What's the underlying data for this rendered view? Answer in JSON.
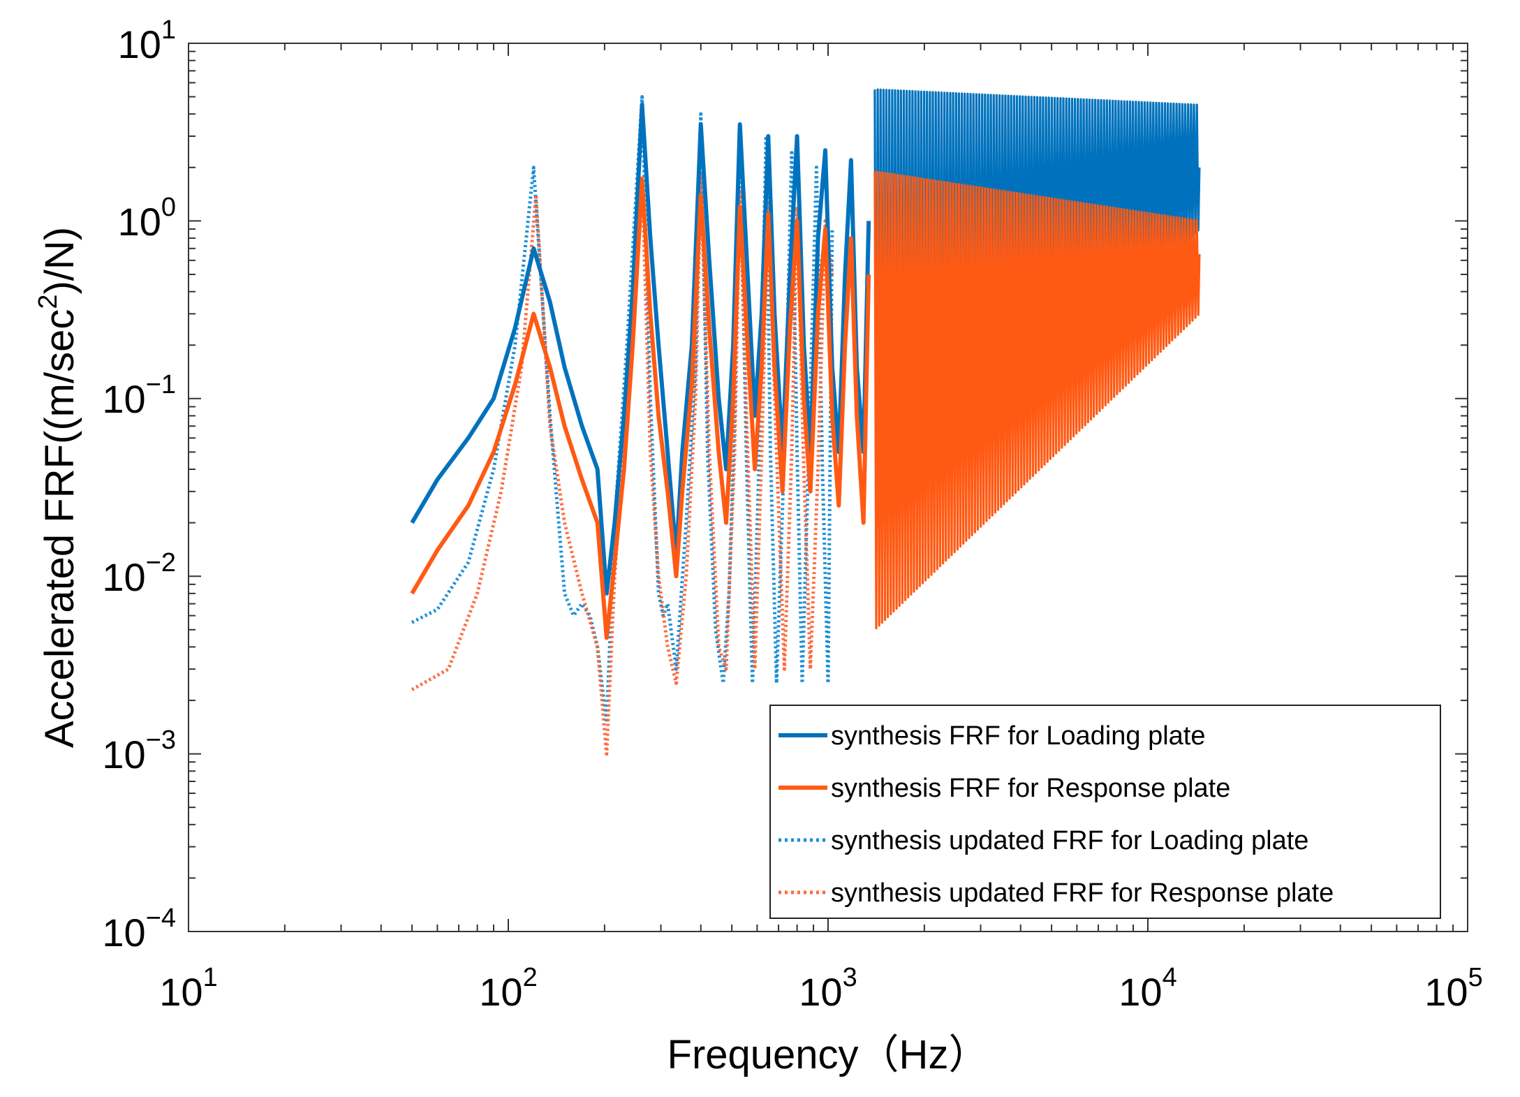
{
  "chart_data": {
    "type": "line",
    "title": "",
    "xlabel": "Frequency（Hz）",
    "ylabel_parts": {
      "prefix": "Accelerated FRF((m/sec",
      "sup": "2",
      "suffix": ")/N)"
    },
    "xscale": "log",
    "yscale": "log",
    "xlim": [
      10,
      100000
    ],
    "ylim": [
      0.0001,
      10
    ],
    "x_ticks": [
      {
        "value": 10,
        "base": "10",
        "exp": "1"
      },
      {
        "value": 100,
        "base": "10",
        "exp": "2"
      },
      {
        "value": 1000,
        "base": "10",
        "exp": "3"
      },
      {
        "value": 10000,
        "base": "10",
        "exp": "4"
      },
      {
        "value": 100000,
        "base": "10",
        "exp": "5"
      }
    ],
    "y_ticks": [
      {
        "value": 10,
        "base": "10",
        "exp": "1"
      },
      {
        "value": 1,
        "base": "10",
        "exp": "0"
      },
      {
        "value": 0.1,
        "base": "10",
        "exp": "−1"
      },
      {
        "value": 0.01,
        "base": "10",
        "exp": "−2"
      },
      {
        "value": 0.001,
        "base": "10",
        "exp": "−3"
      },
      {
        "value": 0.0001,
        "base": "10",
        "exp": "−4"
      }
    ],
    "grid": false,
    "legend_position": "bottom-right",
    "series": [
      {
        "name": "synthesis FRF for Loading plate",
        "color": "#0072bd",
        "style": "solid",
        "x": [
          50,
          60,
          75,
          90,
          105,
          120,
          135,
          150,
          170,
          190,
          203,
          215,
          230,
          245,
          262,
          278,
          295,
          315,
          335,
          350,
          375,
          400,
          425,
          455,
          480,
          505,
          530,
          560,
          590,
          620,
          650,
          680,
          720,
          760,
          800,
          840,
          880,
          930,
          980,
          1030,
          1080,
          1130,
          1180,
          1230,
          1290,
          1340
        ],
        "y": [
          0.02,
          0.035,
          0.06,
          0.1,
          0.25,
          0.7,
          0.35,
          0.15,
          0.07,
          0.04,
          0.008,
          0.02,
          0.08,
          0.4,
          4.5,
          0.8,
          0.2,
          0.05,
          0.013,
          0.05,
          0.2,
          3.5,
          0.6,
          0.1,
          0.04,
          0.2,
          3.5,
          0.5,
          0.08,
          0.3,
          3.0,
          0.3,
          0.05,
          0.5,
          3.0,
          0.2,
          0.05,
          0.8,
          2.5,
          0.15,
          0.05,
          0.5,
          2.2,
          0.15,
          0.05,
          1.0
        ]
      },
      {
        "name": "synthesis FRF for Response plate",
        "color": "#ff5a14",
        "style": "solid",
        "x": [
          50,
          60,
          75,
          90,
          105,
          120,
          135,
          150,
          170,
          190,
          203,
          215,
          230,
          245,
          262,
          278,
          295,
          315,
          335,
          350,
          375,
          400,
          425,
          455,
          480,
          505,
          530,
          560,
          590,
          620,
          650,
          680,
          720,
          760,
          800,
          840,
          880,
          930,
          980,
          1030,
          1080,
          1130,
          1180,
          1230,
          1290,
          1340
        ],
        "y": [
          0.008,
          0.014,
          0.025,
          0.05,
          0.12,
          0.3,
          0.15,
          0.07,
          0.035,
          0.02,
          0.0045,
          0.012,
          0.04,
          0.2,
          1.7,
          0.3,
          0.08,
          0.03,
          0.01,
          0.03,
          0.12,
          1.4,
          0.25,
          0.05,
          0.02,
          0.1,
          1.2,
          0.2,
          0.04,
          0.15,
          1.1,
          0.15,
          0.03,
          0.25,
          1.0,
          0.1,
          0.03,
          0.3,
          0.9,
          0.08,
          0.025,
          0.2,
          0.8,
          0.08,
          0.02,
          0.5
        ]
      },
      {
        "name": "synthesis updated FRF for Loading plate",
        "color": "#1a8fd6",
        "style": "dotted",
        "x": [
          50,
          60,
          75,
          90,
          105,
          120,
          135,
          150,
          160,
          170,
          180,
          190,
          203,
          215,
          235,
          262,
          278,
          295,
          305,
          315,
          335,
          360,
          385,
          400,
          420,
          445,
          470,
          490,
          510,
          530,
          555,
          580,
          610,
          640,
          660,
          690,
          730,
          770,
          800,
          830,
          870,
          920,
          960,
          1000,
          1030
        ],
        "y": [
          0.0055,
          0.0065,
          0.012,
          0.04,
          0.2,
          2.0,
          0.08,
          0.008,
          0.006,
          0.007,
          0.006,
          0.004,
          0.0015,
          0.02,
          0.2,
          5.0,
          0.1,
          0.008,
          0.006,
          0.007,
          0.003,
          0.02,
          0.15,
          4.0,
          0.05,
          0.005,
          0.0025,
          0.008,
          0.08,
          3.2,
          0.05,
          0.0025,
          0.05,
          3.0,
          0.05,
          0.0025,
          0.05,
          2.5,
          0.05,
          0.0025,
          0.05,
          2.0,
          0.04,
          0.0025,
          0.9
        ]
      },
      {
        "name": "synthesis updated FRF for Response plate",
        "color": "#ff6a3d",
        "style": "dotted",
        "x": [
          50,
          65,
          80,
          95,
          110,
          122,
          135,
          150,
          170,
          190,
          203,
          215,
          235,
          262,
          278,
          295,
          315,
          335,
          360,
          385,
          400,
          425,
          455,
          480,
          510,
          530,
          560,
          590,
          620,
          650,
          690,
          730,
          770,
          800,
          840,
          880,
          930,
          980,
          1030
        ],
        "y": [
          0.0023,
          0.003,
          0.008,
          0.03,
          0.15,
          1.4,
          0.07,
          0.02,
          0.008,
          0.004,
          0.001,
          0.01,
          0.1,
          1.8,
          0.05,
          0.01,
          0.004,
          0.0025,
          0.01,
          0.1,
          1.8,
          0.05,
          0.004,
          0.003,
          0.05,
          1.5,
          0.05,
          0.003,
          0.05,
          1.3,
          0.05,
          0.003,
          0.05,
          1.2,
          0.04,
          0.003,
          0.04,
          1.0,
          0.5
        ]
      }
    ],
    "dense_region": {
      "x_start": 1400,
      "x_end": 14500,
      "loading": {
        "upper_start": 5.5,
        "upper_end": 4.5,
        "lower_start": 0.012,
        "lower_end": 0.9,
        "final_x": 14500,
        "final_y": 2.0
      },
      "response": {
        "upper_start": 1.9,
        "upper_end": 1.0,
        "lower_start": 0.005,
        "lower_end": 0.3,
        "final_x": 14500,
        "final_y": 0.65
      }
    }
  }
}
